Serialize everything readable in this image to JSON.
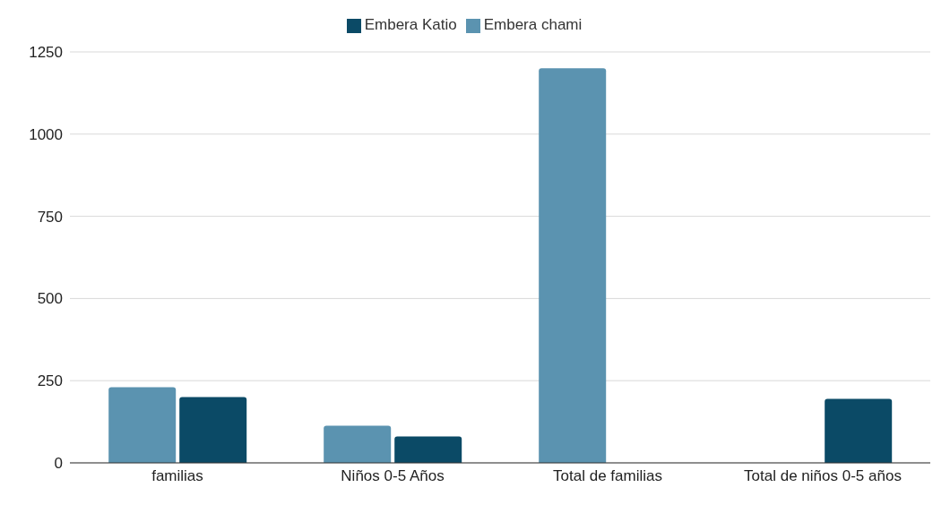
{
  "chart_data": {
    "type": "bar",
    "categories": [
      "familias",
      "Niños 0-5 Años",
      "Total de familias",
      "Total de niños 0-5 años"
    ],
    "series": [
      {
        "name": "Embera chami",
        "color": "#5b93b0",
        "values": [
          230,
          113,
          1200,
          null
        ]
      },
      {
        "name": "Embera Katio",
        "color": "#0b4a66",
        "values": [
          200,
          80,
          null,
          195
        ]
      }
    ],
    "ylim": [
      0,
      1250
    ],
    "yticks": [
      0,
      250,
      500,
      750,
      1000,
      1250
    ],
    "grid": "y",
    "legend": "top"
  }
}
